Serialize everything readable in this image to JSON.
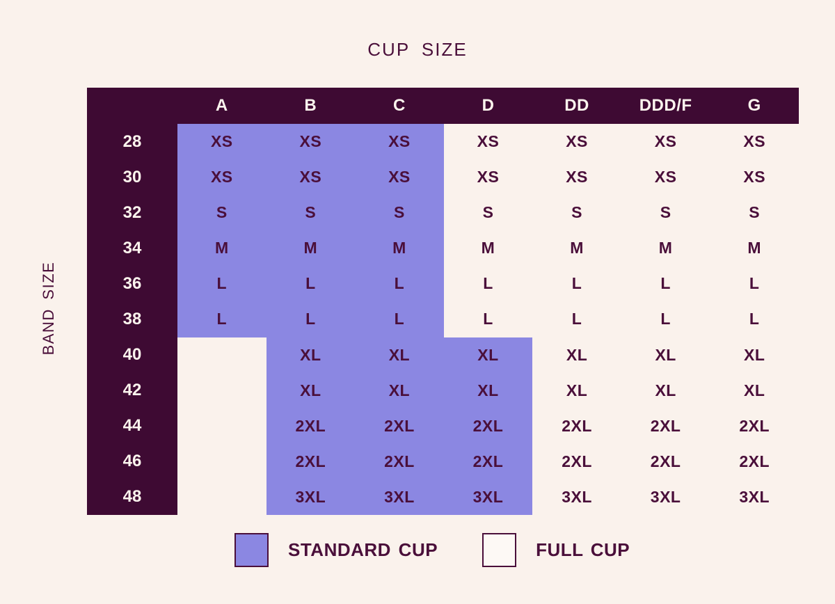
{
  "colors": {
    "background": "#faf2ec",
    "plum": "#3e0a33",
    "header_text": "#fcf4ee",
    "standard_fill": "#8b87e2",
    "cell_text": "#4a0f3a",
    "full_fill": "#fdf9f5"
  },
  "chart_data": {
    "type": "table",
    "title": "CUP SIZE",
    "row_axis_label": "BAND SIZE",
    "columns": [
      "A",
      "B",
      "C",
      "D",
      "DD",
      "DDD/F",
      "G"
    ],
    "rows": [
      {
        "band": "28",
        "values": [
          "XS",
          "XS",
          "XS",
          "XS",
          "XS",
          "XS",
          "XS"
        ],
        "standard": [
          true,
          true,
          true,
          false,
          false,
          false,
          false
        ]
      },
      {
        "band": "30",
        "values": [
          "XS",
          "XS",
          "XS",
          "XS",
          "XS",
          "XS",
          "XS"
        ],
        "standard": [
          true,
          true,
          true,
          false,
          false,
          false,
          false
        ]
      },
      {
        "band": "32",
        "values": [
          "S",
          "S",
          "S",
          "S",
          "S",
          "S",
          "S"
        ],
        "standard": [
          true,
          true,
          true,
          false,
          false,
          false,
          false
        ]
      },
      {
        "band": "34",
        "values": [
          "M",
          "M",
          "M",
          "M",
          "M",
          "M",
          "M"
        ],
        "standard": [
          true,
          true,
          true,
          false,
          false,
          false,
          false
        ]
      },
      {
        "band": "36",
        "values": [
          "L",
          "L",
          "L",
          "L",
          "L",
          "L",
          "L"
        ],
        "standard": [
          true,
          true,
          true,
          false,
          false,
          false,
          false
        ]
      },
      {
        "band": "38",
        "values": [
          "L",
          "L",
          "L",
          "L",
          "L",
          "L",
          "L"
        ],
        "standard": [
          true,
          true,
          true,
          false,
          false,
          false,
          false
        ]
      },
      {
        "band": "40",
        "values": [
          "",
          "XL",
          "XL",
          "XL",
          "XL",
          "XL",
          "XL"
        ],
        "standard": [
          false,
          true,
          true,
          true,
          false,
          false,
          false
        ]
      },
      {
        "band": "42",
        "values": [
          "",
          "XL",
          "XL",
          "XL",
          "XL",
          "XL",
          "XL"
        ],
        "standard": [
          false,
          true,
          true,
          true,
          false,
          false,
          false
        ]
      },
      {
        "band": "44",
        "values": [
          "",
          "2XL",
          "2XL",
          "2XL",
          "2XL",
          "2XL",
          "2XL"
        ],
        "standard": [
          false,
          true,
          true,
          true,
          false,
          false,
          false
        ]
      },
      {
        "band": "46",
        "values": [
          "",
          "2XL",
          "2XL",
          "2XL",
          "2XL",
          "2XL",
          "2XL"
        ],
        "standard": [
          false,
          true,
          true,
          true,
          false,
          false,
          false
        ]
      },
      {
        "band": "48",
        "values": [
          "",
          "3XL",
          "3XL",
          "3XL",
          "3XL",
          "3XL",
          "3XL"
        ],
        "standard": [
          false,
          true,
          true,
          true,
          false,
          false,
          false
        ]
      }
    ],
    "legend": [
      {
        "label": "STANDARD CUP",
        "swatch": "standard"
      },
      {
        "label": "FULL CUP",
        "swatch": "full"
      }
    ]
  }
}
